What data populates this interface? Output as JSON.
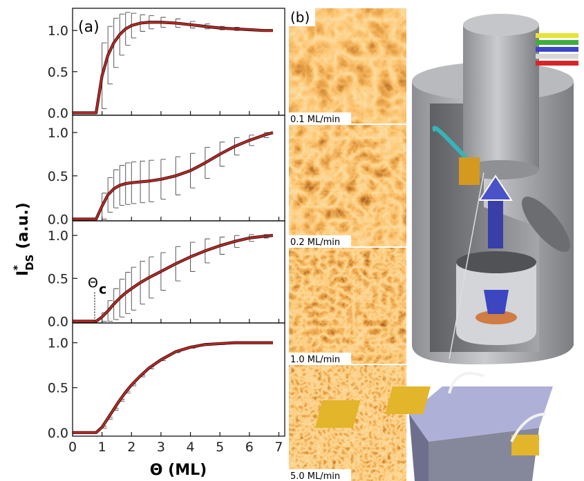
{
  "figure": {
    "ylabel": {
      "symbol": "I",
      "sup": "*",
      "sub": "DS",
      "unit": "(a.u.)"
    },
    "xlabel": "Θ (ML)",
    "panel_a_label": "(a)",
    "panel_b_label": "(b)",
    "images": [
      "0.1 ML/min",
      "0.2 ML/min",
      "1.0 ML/min",
      "5.0 ML/min"
    ]
  },
  "chart_data": [
    {
      "type": "line",
      "xlim": [
        0,
        7.2
      ],
      "ylim": [
        -0.03,
        1.27
      ],
      "yticks": [
        {
          "value": 0,
          "label": "0.0"
        },
        {
          "value": 0.5,
          "label": "0.5"
        },
        {
          "value": 1,
          "label": "1.0"
        }
      ],
      "x": [
        0,
        0.8,
        1.0,
        1.2,
        1.4,
        1.6,
        1.8,
        2.0,
        2.3,
        2.6,
        3.0,
        3.5,
        4.0,
        4.5,
        5.0,
        5.5,
        6.0,
        6.5,
        6.8
      ],
      "values": [
        0,
        0,
        0.45,
        0.7,
        0.85,
        0.95,
        1.02,
        1.06,
        1.09,
        1.1,
        1.1,
        1.09,
        1.07,
        1.05,
        1.03,
        1.02,
        1.01,
        1.0,
        1.0
      ],
      "errors": [
        0,
        0,
        0.4,
        0.35,
        0.3,
        0.25,
        0.2,
        0.15,
        0.1,
        0.08,
        0.06,
        0.05,
        0.04,
        0.03,
        0.02,
        0.02,
        0.01,
        0.01,
        0
      ],
      "color": "#c62521"
    },
    {
      "type": "line",
      "xlim": [
        0,
        7.2
      ],
      "ylim": [
        -0.02,
        1.2
      ],
      "yticks": [
        {
          "value": 0,
          "label": "0.0"
        },
        {
          "value": 0.5,
          "label": "0.5"
        },
        {
          "value": 1,
          "label": "1.0"
        }
      ],
      "x": [
        0,
        0.8,
        1.0,
        1.2,
        1.4,
        1.6,
        1.8,
        2.0,
        2.3,
        2.6,
        3.0,
        3.5,
        4.0,
        4.5,
        5.0,
        5.5,
        6.0,
        6.5,
        6.8
      ],
      "values": [
        0,
        0,
        0.15,
        0.28,
        0.35,
        0.39,
        0.41,
        0.42,
        0.43,
        0.44,
        0.46,
        0.5,
        0.56,
        0.65,
        0.75,
        0.84,
        0.91,
        0.97,
        1.0
      ],
      "errors": [
        0,
        0,
        0.15,
        0.2,
        0.22,
        0.23,
        0.24,
        0.24,
        0.24,
        0.24,
        0.23,
        0.22,
        0.2,
        0.18,
        0.14,
        0.1,
        0.06,
        0.03,
        0
      ],
      "color": "#c62521"
    },
    {
      "type": "line",
      "xlim": [
        0,
        7.2
      ],
      "ylim": [
        -0.02,
        1.17
      ],
      "yticks": [
        {
          "value": 0,
          "label": "0.0"
        },
        {
          "value": 0.5,
          "label": "0.5"
        },
        {
          "value": 1,
          "label": "1.0"
        }
      ],
      "x": [
        0,
        0.8,
        1.0,
        1.2,
        1.4,
        1.6,
        1.8,
        2.0,
        2.3,
        2.6,
        3.0,
        3.5,
        4.0,
        4.5,
        5.0,
        5.5,
        6.0,
        6.5,
        6.8
      ],
      "values": [
        0,
        0,
        0.05,
        0.12,
        0.2,
        0.27,
        0.33,
        0.38,
        0.45,
        0.51,
        0.58,
        0.67,
        0.75,
        0.82,
        0.88,
        0.93,
        0.97,
        0.99,
        1.0
      ],
      "errors": [
        0,
        0,
        0.05,
        0.12,
        0.18,
        0.22,
        0.24,
        0.25,
        0.25,
        0.24,
        0.22,
        0.2,
        0.17,
        0.14,
        0.1,
        0.07,
        0.04,
        0.02,
        0
      ],
      "color": "#c62521",
      "annotation": {
        "text": "Θ",
        "sub": "c",
        "x": 0.75
      }
    },
    {
      "type": "line",
      "xlim": [
        0,
        7.2
      ],
      "ylim": [
        -0.04,
        1.22
      ],
      "yticks": [
        {
          "value": 0,
          "label": "0.0"
        },
        {
          "value": 0.5,
          "label": "0.5"
        },
        {
          "value": 1,
          "label": "1.0"
        }
      ],
      "xticks": [
        0,
        1,
        2,
        3,
        4,
        5,
        6,
        7
      ],
      "x": [
        0,
        0.8,
        1.0,
        1.2,
        1.4,
        1.6,
        1.8,
        2.0,
        2.3,
        2.6,
        3.0,
        3.5,
        4.0,
        4.5,
        5.0,
        5.5,
        6.0,
        6.5,
        6.8
      ],
      "values": [
        0,
        0,
        0.06,
        0.16,
        0.26,
        0.36,
        0.45,
        0.53,
        0.63,
        0.72,
        0.81,
        0.9,
        0.95,
        0.98,
        0.99,
        1.0,
        1.0,
        1.0,
        1.0
      ],
      "errors": [
        0,
        0,
        0.01,
        0.01,
        0.01,
        0.01,
        0.01,
        0.01,
        0.01,
        0.01,
        0.01,
        0.01,
        0.01,
        0.01,
        0.01,
        0.01,
        0.01,
        0.01,
        0
      ],
      "color": "#c62521"
    }
  ]
}
